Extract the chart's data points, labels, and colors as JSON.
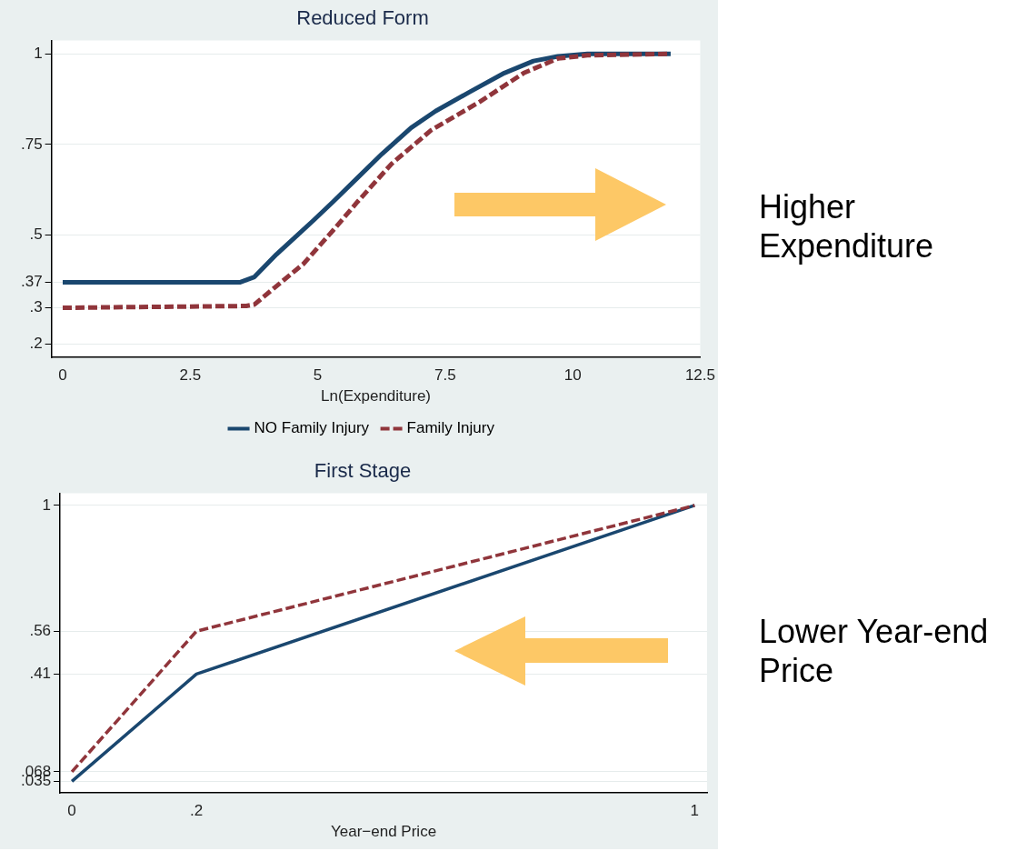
{
  "chart_data": [
    {
      "type": "line",
      "title": "Reduced Form",
      "xlabel": "Ln(Expenditure)",
      "xlim": [
        -0.22,
        12.5
      ],
      "xticks": [
        0,
        2.5,
        5,
        7.5,
        10,
        12.5
      ],
      "ylim": [
        0.163,
        1.037
      ],
      "yticks": [
        {
          "value": 0.2,
          "label": ".2"
        },
        {
          "value": 0.3,
          "label": ".3"
        },
        {
          "value": 0.37,
          "label": ".37"
        },
        {
          "value": 0.5,
          "label": ".5"
        },
        {
          "value": 0.75,
          "label": ".75"
        },
        1
      ],
      "grid": "y",
      "legend": "bottom",
      "marker": "none",
      "annotations": [
        "Higher Expenditure"
      ],
      "series": [
        {
          "name": "NO Family Injury",
          "color": "#1a476f",
          "line_style": "solid",
          "x": [
            0,
            3.47,
            3.76,
            4.19,
            4.91,
            5.3,
            5.78,
            6.26,
            6.83,
            7.31,
            7.98,
            8.66,
            9.23,
            9.71,
            10.29,
            11.92
          ],
          "values": [
            0.37,
            0.37,
            0.385,
            0.447,
            0.54,
            0.592,
            0.658,
            0.724,
            0.796,
            0.842,
            0.895,
            0.947,
            0.98,
            0.993,
            1,
            1
          ]
        },
        {
          "name": "Family Injury",
          "color": "#90353b",
          "line_style": "dashed",
          "x": [
            0,
            3.6,
            3.76,
            4.15,
            4.72,
            5.3,
            5.78,
            6.45,
            7.22,
            8.18,
            9.04,
            9.71,
            10.29,
            11.92
          ],
          "values": [
            0.3,
            0.305,
            0.309,
            0.355,
            0.421,
            0.513,
            0.592,
            0.697,
            0.789,
            0.868,
            0.947,
            0.987,
            0.996,
            1
          ]
        }
      ]
    },
    {
      "type": "line",
      "title": "First Stage",
      "xlabel": "Year−end Price",
      "xlim": [
        -0.019,
        1.02
      ],
      "xticks": [
        0,
        {
          "value": 0.2,
          "label": ".2"
        },
        1
      ],
      "ylim": [
        -0.006,
        1.043
      ],
      "yticks": [
        {
          "value": 0.035,
          "label": ".035"
        },
        {
          "value": 0.068,
          "label": ".068"
        },
        {
          "value": 0.41,
          "label": ".41"
        },
        {
          "value": 0.56,
          "label": ".56"
        },
        1
      ],
      "grid": "y",
      "legend": false,
      "marker": "none",
      "annotations": [
        "Lower Year-end Price"
      ],
      "series": [
        {
          "color": "#1a476f",
          "line_style": "solid",
          "x": [
            0,
            0.2,
            1
          ],
          "values": [
            0.035,
            0.41,
            1
          ]
        },
        {
          "color": "#90353b",
          "line_style": "dashed",
          "x": [
            0,
            0.2,
            1
          ],
          "values": [
            0.068,
            0.56,
            1
          ]
        }
      ]
    }
  ]
}
